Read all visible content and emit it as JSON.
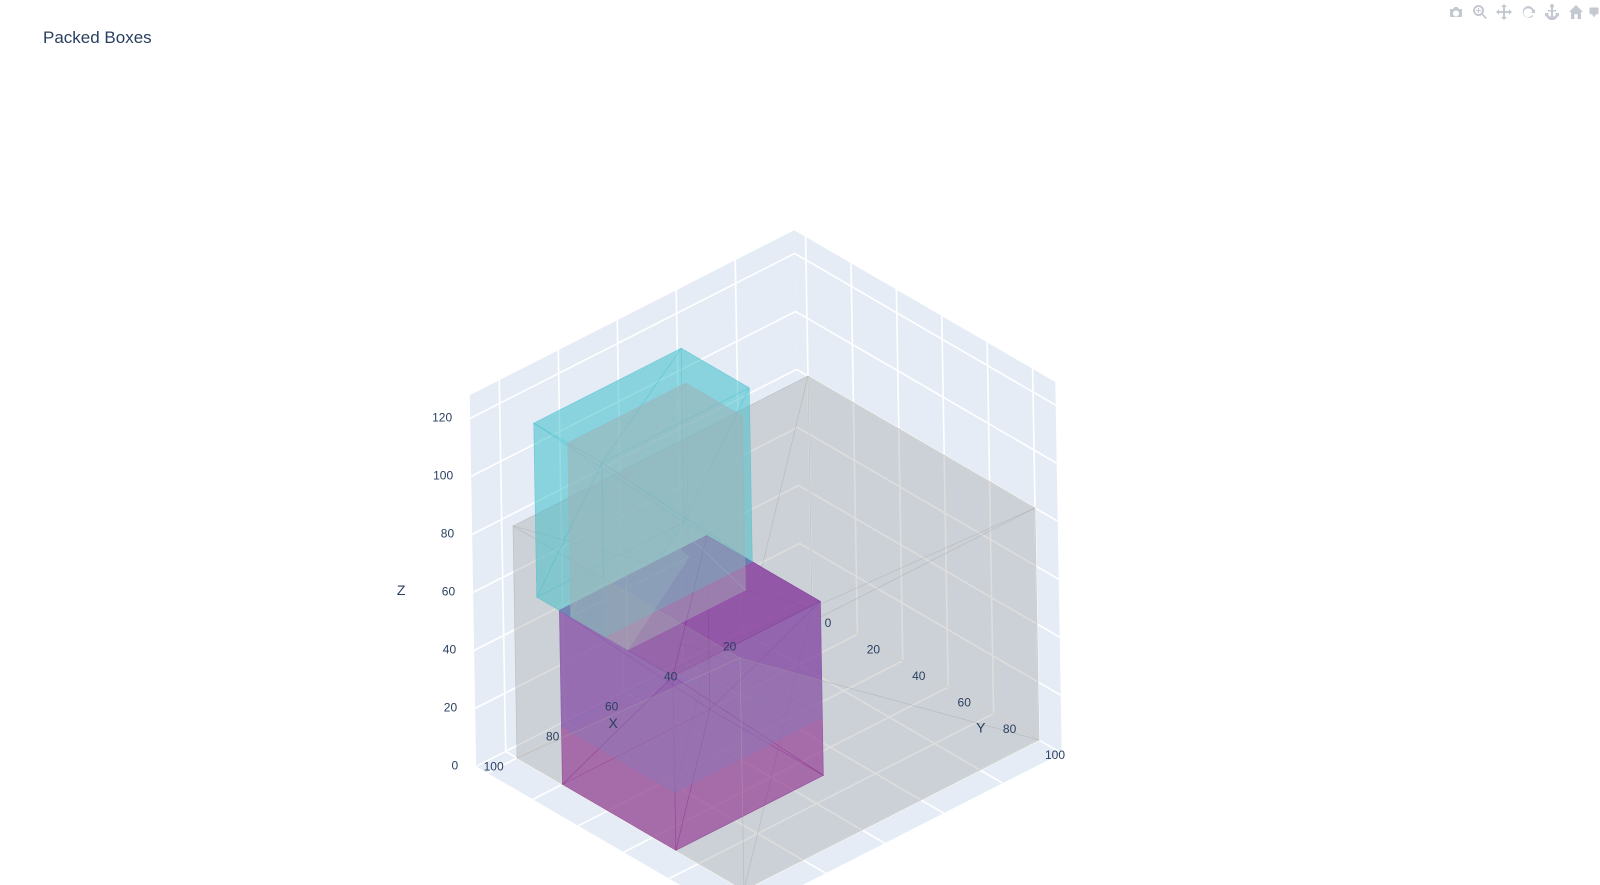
{
  "chart_data": {
    "type": "mesh3d",
    "title": "Packed Boxes",
    "axes": {
      "x": {
        "title": "X",
        "ticks": [
          20,
          40,
          60,
          80,
          100
        ]
      },
      "y": {
        "title": "Y",
        "ticks": [
          0,
          20,
          40,
          60,
          80,
          100
        ]
      },
      "z": {
        "title": "Z",
        "ticks": [
          0,
          20,
          40,
          60,
          80,
          100,
          120
        ]
      }
    },
    "series": [
      {
        "color": "#aaaaaa",
        "opacity": 0.4,
        "box": {
          "x": [
            0,
            100
          ],
          "y": [
            0,
            100
          ],
          "z": [
            0,
            80
          ]
        }
      },
      {
        "color": "#8878c3",
        "opacity": 0.6,
        "box": {
          "x": [
            50,
            100
          ],
          "y": [
            20,
            70
          ],
          "z": [
            20,
            60
          ]
        }
      },
      {
        "color": "#800080",
        "opacity": 0.65,
        "box": {
          "x": [
            50,
            100
          ],
          "y": [
            20,
            70
          ],
          "z": [
            0,
            60
          ]
        }
      },
      {
        "color": "#40c0cc",
        "opacity": 0.6,
        "box": {
          "x": [
            50,
            100
          ],
          "y": [
            10,
            40
          ],
          "z": [
            60,
            120
          ]
        }
      },
      {
        "color": "#a8b4b8",
        "opacity": 0.7,
        "box": {
          "x": [
            60,
            100
          ],
          "y": [
            25,
            50
          ],
          "z": [
            60,
            120
          ]
        }
      }
    ]
  },
  "modebar": {
    "buttons": [
      {
        "icon": "camera-icon"
      },
      {
        "icon": "zoom-icon"
      },
      {
        "icon": "pan-icon"
      },
      {
        "icon": "orbit-rotation-icon"
      },
      {
        "icon": "turntable-rotation-icon"
      },
      {
        "icon": "home-icon"
      },
      {
        "icon": "hover-icon"
      }
    ]
  }
}
